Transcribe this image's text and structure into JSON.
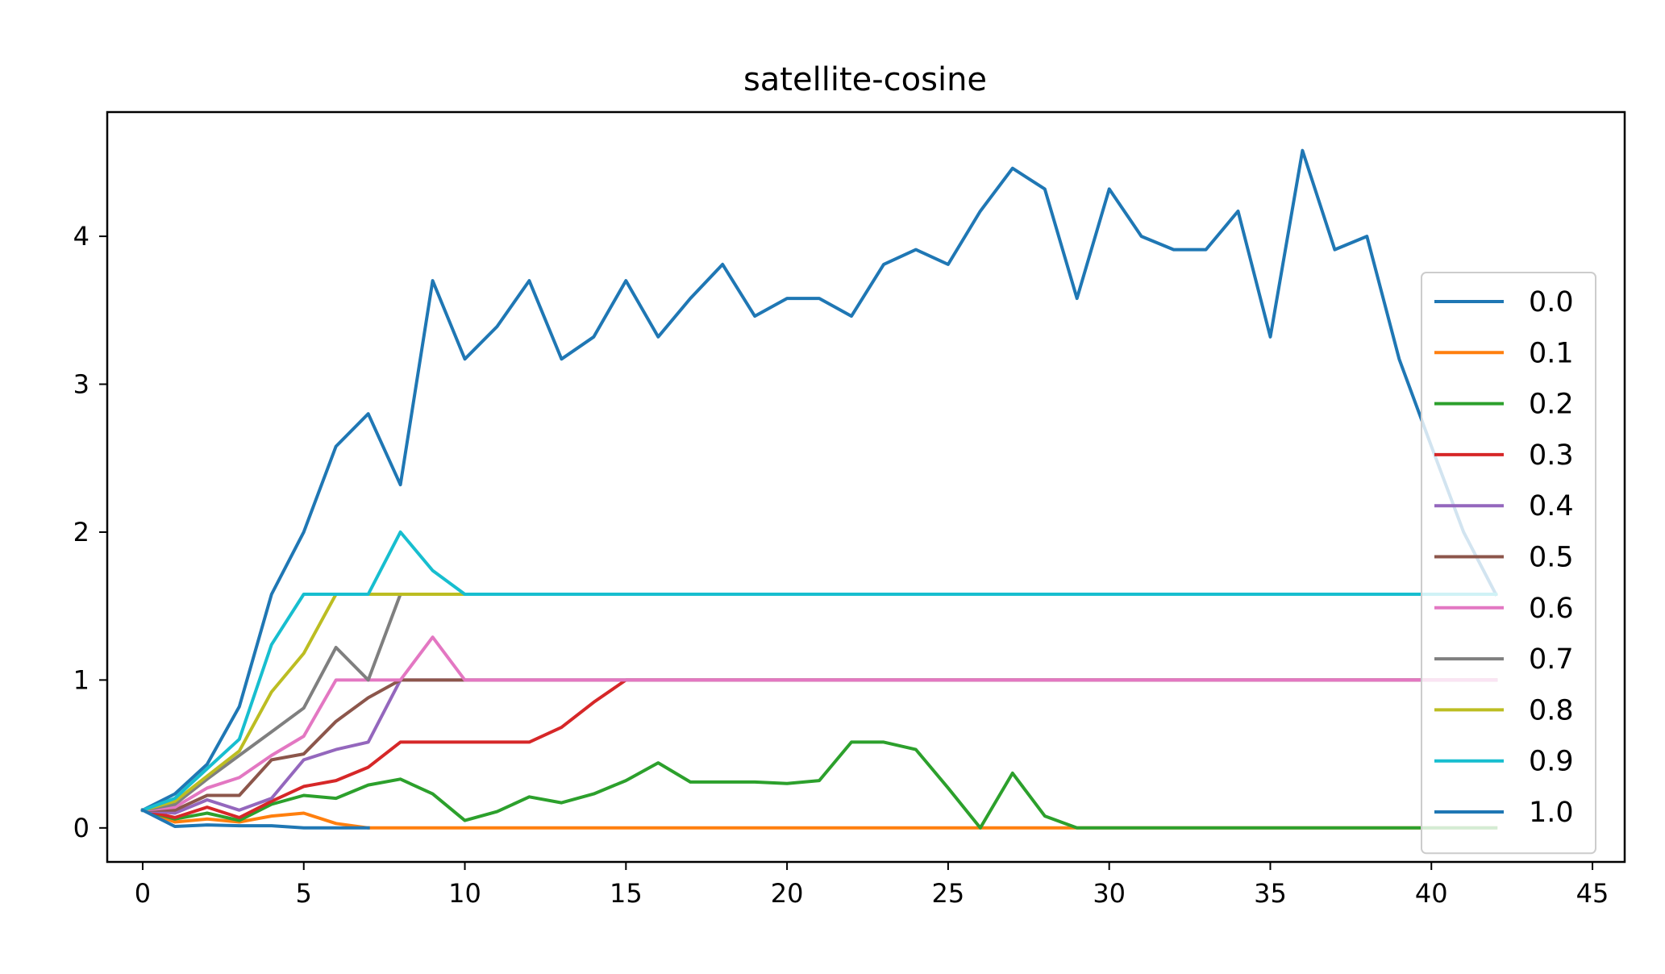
{
  "chart_data": {
    "type": "line",
    "title": "satellite-cosine",
    "xlabel": "",
    "ylabel": "",
    "xlim": [
      -1.1,
      46
    ],
    "ylim": [
      -0.23,
      4.84
    ],
    "xticks": [
      0,
      5,
      10,
      15,
      20,
      25,
      30,
      35,
      40,
      45
    ],
    "yticks": [
      0,
      1,
      2,
      3,
      4
    ],
    "grid": false,
    "legend_position": "right",
    "series": [
      {
        "name": "0.0",
        "color": "#1f77b4",
        "x": [
          0,
          1,
          2,
          3,
          4,
          5,
          6,
          7,
          8,
          9,
          10,
          11,
          12,
          13,
          14,
          15,
          16,
          17,
          18,
          19,
          20,
          21,
          22,
          23,
          24,
          25,
          26,
          27,
          28,
          29,
          30,
          31,
          32,
          33,
          34,
          35,
          36,
          37,
          38,
          39,
          40,
          41,
          42
        ],
        "y": [
          0.12,
          0.23,
          0.43,
          0.82,
          1.58,
          2.0,
          2.58,
          2.8,
          2.32,
          3.7,
          3.17,
          3.39,
          3.7,
          3.17,
          3.32,
          3.7,
          3.32,
          3.58,
          3.81,
          3.46,
          3.58,
          3.58,
          3.46,
          3.81,
          3.91,
          3.81,
          4.17,
          4.46,
          4.32,
          3.58,
          4.32,
          4.0,
          3.91,
          3.91,
          4.17,
          3.32,
          4.58,
          3.91,
          4.0,
          3.17,
          2.58,
          2.0,
          1.58
        ]
      },
      {
        "name": "0.1",
        "color": "#ff7f0e",
        "x": [
          0,
          1,
          2,
          3,
          4,
          5,
          6,
          7,
          8,
          9,
          10,
          11,
          12,
          13,
          14,
          15,
          16,
          17,
          18,
          19,
          20,
          21,
          22,
          23,
          24,
          25,
          26,
          27,
          28,
          29,
          30,
          31,
          32,
          33,
          34,
          35,
          36,
          37,
          38,
          39,
          40,
          41,
          42
        ],
        "y": [
          0.12,
          0.04,
          0.06,
          0.04,
          0.08,
          0.1,
          0.03,
          0,
          0,
          0,
          0,
          0,
          0,
          0,
          0,
          0,
          0,
          0,
          0,
          0,
          0,
          0,
          0,
          0,
          0,
          0,
          0,
          0,
          0,
          0,
          0,
          0,
          0,
          0,
          0,
          0,
          0,
          0,
          0,
          0,
          0,
          0,
          0
        ]
      },
      {
        "name": "0.2",
        "color": "#2ca02c",
        "x": [
          0,
          1,
          2,
          3,
          4,
          5,
          6,
          7,
          8,
          9,
          10,
          11,
          12,
          13,
          14,
          15,
          16,
          17,
          18,
          19,
          20,
          21,
          22,
          23,
          24,
          25,
          26,
          27,
          28,
          29,
          30,
          31,
          32,
          33,
          34,
          35,
          36,
          37,
          38,
          39,
          40,
          41,
          42
        ],
        "y": [
          0.12,
          0.06,
          0.1,
          0.05,
          0.16,
          0.22,
          0.2,
          0.29,
          0.33,
          0.23,
          0.05,
          0.11,
          0.21,
          0.17,
          0.23,
          0.32,
          0.44,
          0.31,
          0.31,
          0.31,
          0.3,
          0.32,
          0.58,
          0.58,
          0.53,
          0.27,
          0.0,
          0.37,
          0.08,
          0,
          0,
          0,
          0,
          0,
          0,
          0,
          0,
          0,
          0,
          0,
          0,
          0,
          0
        ]
      },
      {
        "name": "0.3",
        "color": "#d62728",
        "x": [
          0,
          1,
          2,
          3,
          4,
          5,
          6,
          7,
          8,
          9,
          10,
          11,
          12,
          13,
          14,
          15,
          16,
          17,
          18,
          19,
          20,
          21,
          22,
          23,
          24,
          25,
          26,
          27,
          28,
          29,
          30,
          31,
          32,
          33,
          34,
          35,
          36,
          37,
          38,
          39,
          40,
          41,
          42
        ],
        "y": [
          0.12,
          0.07,
          0.14,
          0.07,
          0.18,
          0.28,
          0.32,
          0.41,
          0.58,
          0.58,
          0.58,
          0.58,
          0.58,
          0.68,
          0.85,
          1.0,
          1,
          1,
          1,
          1,
          1,
          1,
          1,
          1,
          1,
          1,
          1,
          1,
          1,
          1,
          1,
          1,
          1,
          1,
          1,
          1,
          1,
          1,
          1,
          1,
          1,
          1,
          1
        ]
      },
      {
        "name": "0.4",
        "color": "#9467bd",
        "x": [
          0,
          1,
          2,
          3,
          4,
          5,
          6,
          7,
          8,
          9,
          10,
          11,
          12,
          13,
          14,
          15,
          16,
          17,
          18,
          19,
          20,
          21,
          22,
          23,
          24,
          25,
          26,
          27,
          28,
          29,
          30,
          31,
          32,
          33,
          34,
          35,
          36,
          37,
          38,
          39,
          40,
          41,
          42
        ],
        "y": [
          0.12,
          0.1,
          0.19,
          0.12,
          0.2,
          0.46,
          0.53,
          0.58,
          1.0,
          1,
          1,
          1,
          1,
          1,
          1,
          1,
          1,
          1,
          1,
          1,
          1,
          1,
          1,
          1,
          1,
          1,
          1,
          1,
          1,
          1,
          1,
          1,
          1,
          1,
          1,
          1,
          1,
          1,
          1,
          1,
          1,
          1,
          1
        ]
      },
      {
        "name": "0.5",
        "color": "#8c564b",
        "x": [
          0,
          1,
          2,
          3,
          4,
          5,
          6,
          7,
          8,
          9,
          10,
          11,
          12,
          13,
          14,
          15,
          16,
          17,
          18,
          19,
          20,
          21,
          22,
          23,
          24,
          25,
          26,
          27,
          28,
          29,
          30,
          31,
          32,
          33,
          34,
          35,
          36,
          37,
          38,
          39,
          40,
          41,
          42
        ],
        "y": [
          0.12,
          0.12,
          0.22,
          0.22,
          0.46,
          0.5,
          0.72,
          0.88,
          1.0,
          1,
          1,
          1,
          1,
          1,
          1,
          1,
          1,
          1,
          1,
          1,
          1,
          1,
          1,
          1,
          1,
          1,
          1,
          1,
          1,
          1,
          1,
          1,
          1,
          1,
          1,
          1,
          1,
          1,
          1,
          1,
          1,
          1,
          1
        ]
      },
      {
        "name": "0.6",
        "color": "#e377c2",
        "x": [
          0,
          1,
          2,
          3,
          4,
          5,
          6,
          7,
          8,
          9,
          10,
          11,
          12,
          13,
          14,
          15,
          16,
          17,
          18,
          19,
          20,
          21,
          22,
          23,
          24,
          25,
          26,
          27,
          28,
          29,
          30,
          31,
          32,
          33,
          34,
          35,
          36,
          37,
          38,
          39,
          40,
          41,
          42
        ],
        "y": [
          0.12,
          0.14,
          0.27,
          0.34,
          0.49,
          0.62,
          1.0,
          1.0,
          1.0,
          1.29,
          1.0,
          1,
          1,
          1,
          1,
          1,
          1,
          1,
          1,
          1,
          1,
          1,
          1,
          1,
          1,
          1,
          1,
          1,
          1,
          1,
          1,
          1,
          1,
          1,
          1,
          1,
          1,
          1,
          1,
          1,
          1,
          1,
          1
        ]
      },
      {
        "name": "0.7",
        "color": "#7f7f7f",
        "x": [
          0,
          1,
          2,
          3,
          4,
          5,
          6,
          7,
          8,
          9,
          10,
          11,
          12,
          13,
          14,
          15,
          16,
          17,
          18,
          19,
          20,
          21,
          22,
          23,
          24,
          25,
          26,
          27,
          28,
          29,
          30,
          31,
          32,
          33,
          34,
          35,
          36,
          37,
          38,
          39,
          40,
          41,
          42
        ],
        "y": [
          0.12,
          0.16,
          0.33,
          0.49,
          0.65,
          0.81,
          1.22,
          1.0,
          1.58,
          1.58,
          1.58,
          1.58,
          1.58,
          1.58,
          1.58,
          1.58,
          1.58,
          1.58,
          1.58,
          1.58,
          1.58,
          1.58,
          1.58,
          1.58,
          1.58,
          1.58,
          1.58,
          1.58,
          1.58,
          1.58,
          1.58,
          1.58,
          1.58,
          1.58,
          1.58,
          1.58,
          1.58,
          1.58,
          1.58,
          1.58,
          1.58,
          1.58,
          1.58
        ]
      },
      {
        "name": "0.8",
        "color": "#bcbd22",
        "x": [
          0,
          1,
          2,
          3,
          4,
          5,
          6,
          7,
          8,
          9,
          10,
          11,
          12,
          13,
          14,
          15,
          16,
          17,
          18,
          19,
          20,
          21,
          22,
          23,
          24,
          25,
          26,
          27,
          28,
          29,
          30,
          31,
          32,
          33,
          34,
          35,
          36,
          37,
          38,
          39,
          40,
          41,
          42
        ],
        "y": [
          0.12,
          0.18,
          0.35,
          0.52,
          0.92,
          1.18,
          1.58,
          1.58,
          1.58,
          1.58,
          1.58,
          1.58,
          1.58,
          1.58,
          1.58,
          1.58,
          1.58,
          1.58,
          1.58,
          1.58,
          1.58,
          1.58,
          1.58,
          1.58,
          1.58,
          1.58,
          1.58,
          1.58,
          1.58,
          1.58,
          1.58,
          1.58,
          1.58,
          1.58,
          1.58,
          1.58,
          1.58,
          1.58,
          1.58,
          1.58,
          1.58,
          1.58,
          1.58
        ]
      },
      {
        "name": "0.9",
        "color": "#17becf",
        "x": [
          0,
          1,
          2,
          3,
          4,
          5,
          6,
          7,
          8,
          9,
          10,
          11,
          12,
          13,
          14,
          15,
          16,
          17,
          18,
          19,
          20,
          21,
          22,
          23,
          24,
          25,
          26,
          27,
          28,
          29,
          30,
          31,
          32,
          33,
          34,
          35,
          36,
          37,
          38,
          39,
          40,
          41,
          42
        ],
        "y": [
          0.12,
          0.2,
          0.4,
          0.6,
          1.24,
          1.58,
          1.58,
          1.58,
          2.0,
          1.74,
          1.58,
          1.58,
          1.58,
          1.58,
          1.58,
          1.58,
          1.58,
          1.58,
          1.58,
          1.58,
          1.58,
          1.58,
          1.58,
          1.58,
          1.58,
          1.58,
          1.58,
          1.58,
          1.58,
          1.58,
          1.58,
          1.58,
          1.58,
          1.58,
          1.58,
          1.58,
          1.58,
          1.58,
          1.58,
          1.58,
          1.58,
          1.58,
          1.58
        ]
      },
      {
        "name": "1.0",
        "color": "#1f77b4",
        "x": [
          0,
          1,
          2,
          3,
          4,
          5,
          6,
          7
        ],
        "y": [
          0.12,
          0.01,
          0.02,
          0.015,
          0.015,
          0.0,
          0.0,
          0.0
        ]
      }
    ]
  }
}
